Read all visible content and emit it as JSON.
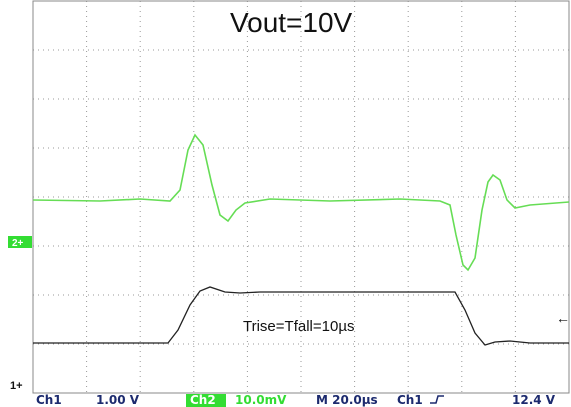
{
  "screen": {
    "title": "Vout=10V",
    "annotation": "Trise=Tfall=10µs",
    "markers": {
      "ch2": "2+",
      "ch1": "1+",
      "trigger": "←"
    },
    "status": {
      "ch1_label": "Ch1",
      "ch1_scale": "1.00 V",
      "ch2_label": "Ch2",
      "ch2_scale": "10.0mV",
      "timebase": "M 20.0µs",
      "trigger_source": "Ch1",
      "trigger_level": "12.4 V"
    }
  }
}
